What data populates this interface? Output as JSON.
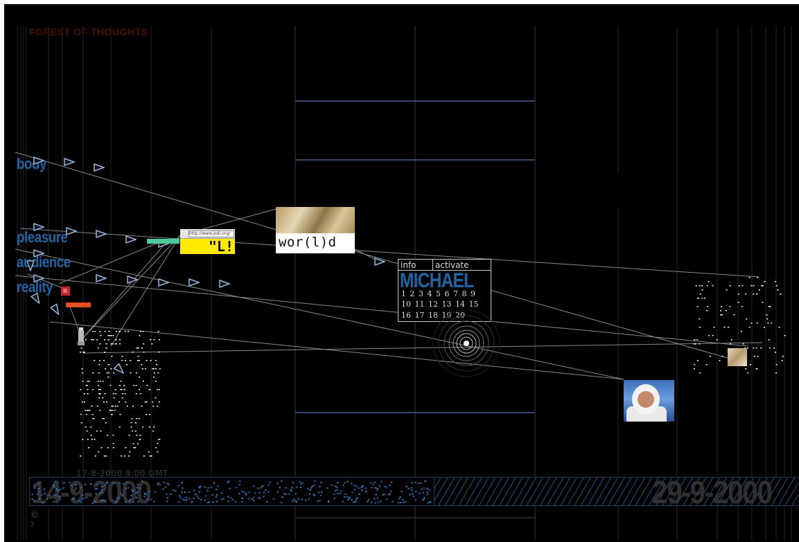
{
  "app": {
    "title": "FOREST OF THOUGHTS"
  },
  "keywords": [
    {
      "id": "body",
      "label": "body"
    },
    {
      "id": "pleasure",
      "label": "pleasure"
    },
    {
      "id": "audience",
      "label": "audience"
    },
    {
      "id": "reality",
      "label": "reality"
    }
  ],
  "world_card": {
    "label": "wor(l)d"
  },
  "browser_chip": {
    "url": "http://www.jodi.org/",
    "text": "\"L!"
  },
  "calendar": {
    "tab_info": "info",
    "tab_activate": "activate",
    "name": "MICHAEL",
    "rows": [
      "1 2 3 4 5 6 7 8 9",
      "10 11 12 13 14 15",
      "16 17 18 19 20"
    ]
  },
  "timeline": {
    "timestamp": "17-8-2000  9:00 GMT",
    "start_date": "14-9-2000",
    "end_date": "29-9-2000"
  },
  "footer": {
    "copyright": "©",
    "marker": "?"
  },
  "colors": {
    "background": "#000000",
    "keyword_blue": "#1f66a6",
    "title_red": "#4a0d0d",
    "highlight_yellow": "#ffea00",
    "accent_red": "#c8242d",
    "accent_orange": "#e74d22",
    "accent_green": "#4ec99a",
    "grid_line": "#2a2a2a",
    "panel_line": "#4a5a99"
  },
  "icons": {
    "arrow": "triangle-arrow-icon",
    "target": "concentric-rings-icon",
    "lamp": "lamp-icon"
  }
}
